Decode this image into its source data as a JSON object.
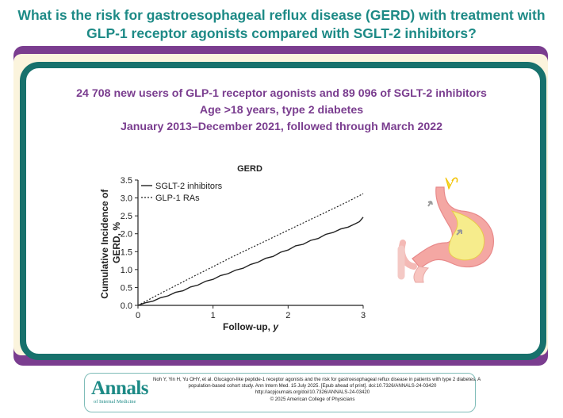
{
  "header": {
    "title_line1": "What is the risk for gastroesophageal reflux disease (GERD) with treatment with",
    "title_line2": "GLP-1 receptor agonists compared with SGLT-2 inhibitors?"
  },
  "study": {
    "line1": "24 708 new users of GLP-1 receptor agonists and 89 096 of SGLT-2 inhibitors",
    "line2": "Age >18 years, type 2 diabetes",
    "line3": "January 2013–December 2021, followed through March 2022"
  },
  "chart_data": {
    "type": "line",
    "title": "GERD",
    "xlabel": "Follow-up, y",
    "ylabel": "Cumulative Incidence of GERD, %",
    "xlim": [
      0,
      3
    ],
    "ylim": [
      0,
      3.5
    ],
    "xticks": [
      "0",
      "1",
      "2",
      "3"
    ],
    "yticks": [
      "0.0",
      "0.5",
      "1.0",
      "1.5",
      "2.0",
      "2.5",
      "3.0",
      "3.5"
    ],
    "grid": false,
    "legend_position": "top-left",
    "series": [
      {
        "name": "SGLT-2 inhibitors",
        "style": "solid",
        "x": [
          0,
          0.1,
          0.2,
          0.3,
          0.4,
          0.5,
          0.6,
          0.7,
          0.8,
          0.9,
          1.0,
          1.1,
          1.2,
          1.3,
          1.4,
          1.5,
          1.6,
          1.7,
          1.8,
          1.9,
          2.0,
          2.1,
          2.2,
          2.3,
          2.4,
          2.5,
          2.6,
          2.7,
          2.8,
          2.9,
          2.95,
          3.0
        ],
        "values": [
          0,
          0.06,
          0.13,
          0.2,
          0.28,
          0.35,
          0.42,
          0.5,
          0.58,
          0.66,
          0.74,
          0.82,
          0.9,
          0.97,
          1.05,
          1.13,
          1.22,
          1.3,
          1.38,
          1.47,
          1.56,
          1.65,
          1.72,
          1.8,
          1.88,
          1.97,
          2.05,
          2.12,
          2.2,
          2.27,
          2.35,
          2.45
        ]
      },
      {
        "name": "GLP-1 RAs",
        "style": "dashed",
        "x": [
          0,
          0.25,
          0.5,
          0.75,
          1.0,
          1.25,
          1.5,
          1.75,
          2.0,
          2.25,
          2.5,
          2.75,
          3.0
        ],
        "values": [
          0,
          0.28,
          0.55,
          0.82,
          1.08,
          1.35,
          1.6,
          1.85,
          2.1,
          2.35,
          2.6,
          2.85,
          3.12
        ]
      }
    ]
  },
  "footer": {
    "logo_main": "Annals",
    "logo_sub": "of Internal Medicine",
    "citation_line1": "Noh Y, Yin H, Yu OHY, et al. Glucagon-like peptide-1 receptor agonists and the risk for gastroesophageal reflux disease in patients with type 2 diabetes. A",
    "citation_line2": "population-based cohort study. Ann Intern Med. 15 July 2025. [Epub ahead of print]. doi:10.7326/ANNALS-24-03420",
    "citation_line3": "http://acpjournals.org/doi/10.7326/ANNALS-24-03420",
    "citation_line4": "© 2025 American College of Physicians"
  },
  "colors": {
    "title_teal": "#1d8a86",
    "frame_teal": "#17716c",
    "purple": "#7a3d8f",
    "cream": "#fbf4dd",
    "stomach_pink": "#f4a7a3",
    "stomach_yellow": "#f6ec8c"
  },
  "icons": {
    "illustration": "stomach-reflux-icon"
  }
}
